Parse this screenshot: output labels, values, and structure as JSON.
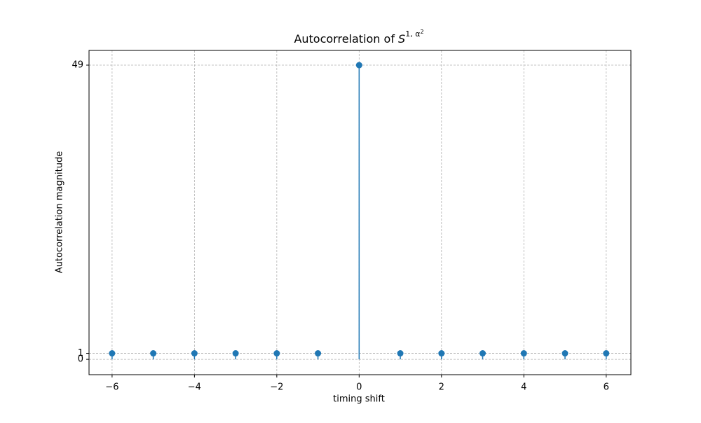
{
  "chart_data": {
    "type": "stem",
    "title": "Autocorrelation of",
    "title_math_base": "S",
    "title_math_superscript": "1, α",
    "title_math_superscript_power": "2",
    "x_label": "timing shift",
    "y_label": "Autocorrelation  magnitude",
    "x": [
      -6,
      -5,
      -4,
      -3,
      -2,
      -1,
      0,
      1,
      2,
      3,
      4,
      5,
      6
    ],
    "series": [
      {
        "color": "#1f77b4",
        "values": [
          1,
          1,
          1,
          1,
          1,
          1,
          49,
          1,
          1,
          1,
          1,
          1,
          1
        ]
      }
    ],
    "xlim": [
      -6.56,
      6.6
    ],
    "ylim": [
      -2.55,
      51.45
    ],
    "xticks": [
      {
        "value": -6,
        "label": "−6"
      },
      {
        "value": -4,
        "label": "−4"
      },
      {
        "value": -2,
        "label": "−2"
      },
      0,
      2,
      4,
      6
    ],
    "yticks": [
      0,
      1,
      49
    ],
    "grid": true
  }
}
